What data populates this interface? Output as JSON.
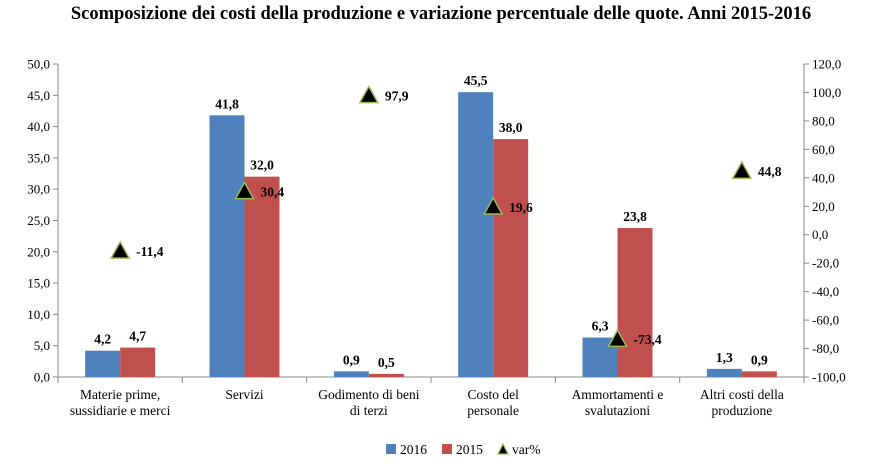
{
  "chart_data": {
    "type": "bar",
    "title": "Scomposizione dei costi della produzione e variazione percentuale delle quote. Anni 2015-2016",
    "categories": [
      [
        "Materie prime,",
        "sussidiarie e merci"
      ],
      [
        "Servizi"
      ],
      [
        "Godimento di beni",
        "di terzi"
      ],
      [
        "Costo del",
        "personale"
      ],
      [
        "Ammortamenti e",
        "svalutazioni"
      ],
      [
        "Altri costi della",
        "produzione"
      ]
    ],
    "series": [
      {
        "name": "2016",
        "values": [
          4.2,
          41.8,
          0.9,
          45.5,
          6.3,
          1.3
        ],
        "labels": [
          "4,2",
          "41,8",
          "0,9",
          "45,5",
          "6,3",
          "1,3"
        ],
        "color": "#4F81BD",
        "axis": "left"
      },
      {
        "name": "2015",
        "values": [
          4.7,
          32.0,
          0.5,
          38.0,
          23.8,
          0.9
        ],
        "labels": [
          "4,7",
          "32,0",
          "0,5",
          "38,0",
          "23,8",
          "0,9"
        ],
        "color": "#C0504D",
        "axis": "left"
      },
      {
        "name": "var%",
        "type": "marker",
        "values": [
          -11.4,
          30.4,
          97.9,
          19.6,
          -73.4,
          44.8
        ],
        "labels": [
          "-11,4",
          "30,4",
          "97,9",
          "19,6",
          "-73,4",
          "44,8"
        ],
        "color": "#000000",
        "edge_color": "#9BBB59",
        "axis": "right"
      }
    ],
    "y_left": {
      "min": 0,
      "max": 50,
      "ticks": [
        "0,0",
        "5,0",
        "10,0",
        "15,0",
        "20,0",
        "25,0",
        "30,0",
        "35,0",
        "40,0",
        "45,0",
        "50,0"
      ]
    },
    "y_right": {
      "min": -100,
      "max": 120,
      "ticks": [
        "-100,0",
        "-80,0",
        "-60,0",
        "-40,0",
        "-20,0",
        "0,0",
        "20,0",
        "40,0",
        "60,0",
        "80,0",
        "100,0",
        "120,0"
      ]
    },
    "grid": false,
    "legend_position": "bottom"
  }
}
